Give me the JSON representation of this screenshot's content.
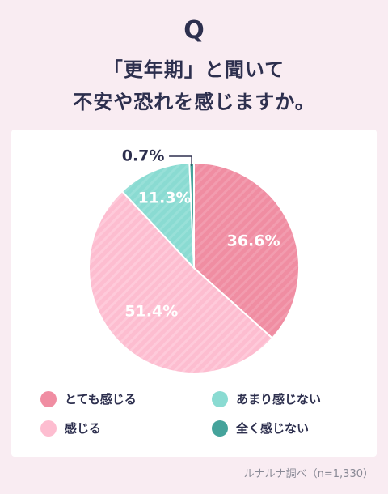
{
  "header": {
    "q_label": "Q",
    "title_line1": "「更年期」と聞いて",
    "title_line2": "不安や恐れを感じますか。"
  },
  "chart_data": {
    "type": "pie",
    "categories": [
      "とても感じる",
      "感じる",
      "あまり感じない",
      "全く感じない"
    ],
    "values": [
      36.6,
      51.4,
      11.3,
      0.7
    ],
    "labels": [
      "36.6%",
      "51.4%",
      "11.3%",
      "0.7%"
    ],
    "colors": [
      "#f08da2",
      "#fdbdd0",
      "#8adbd2",
      "#45a39b"
    ],
    "start": "12 o'clock",
    "direction": "clockwise",
    "legend_position": "bottom"
  },
  "legend": [
    {
      "label": "とても感じる",
      "color": "#f08da2"
    },
    {
      "label": "あまり感じない",
      "color": "#8adbd2"
    },
    {
      "label": "感じる",
      "color": "#fdbdd0"
    },
    {
      "label": "全く感じない",
      "color": "#45a39b"
    }
  ],
  "source": "ルナルナ調べ（n=1,330）"
}
